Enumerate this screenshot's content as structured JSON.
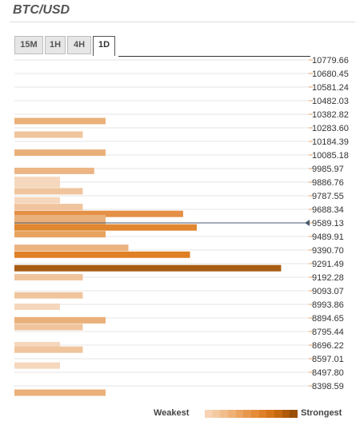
{
  "title": "BTC/USD",
  "tabs": [
    "15M",
    "1H",
    "4H",
    "1D"
  ],
  "active_tab": "1D",
  "legend": {
    "weakest": "Weakest",
    "strongest": "Strongest",
    "colors": [
      "#f7d3b3",
      "#f4c9a1",
      "#f1bd8b",
      "#efb176",
      "#eca461",
      "#e8984d",
      "#e48c3a",
      "#df7f27",
      "#d57419",
      "#c5680f",
      "#b05a0a",
      "#9a4f06"
    ]
  },
  "colors": {
    "grid": "#e6e6e6",
    "tick": "#e8a060",
    "price_line": "#4a5a70"
  },
  "current_price": 9589.13,
  "chart_data": {
    "type": "bar",
    "orientation": "horizontal",
    "title": "BTC/USD",
    "price_levels": [
      10779.66,
      10680.45,
      10581.24,
      10482.03,
      10382.82,
      10283.6,
      10184.39,
      10085.18,
      9985.97,
      9886.76,
      9787.55,
      9688.34,
      9589.13,
      9489.91,
      9390.7,
      9291.49,
      9192.28,
      9093.07,
      8993.86,
      8894.65,
      8795.44,
      8696.22,
      8597.01,
      8497.8,
      8398.59
    ],
    "ylim": [
      8398.59,
      10779.66
    ],
    "max_strength": 12,
    "bars": [
      {
        "price": 10333,
        "strength": 4,
        "color": "#eab07a"
      },
      {
        "price": 10234,
        "strength": 3,
        "color": "#f0c59d"
      },
      {
        "price": 10102,
        "strength": 4,
        "color": "#eab07a"
      },
      {
        "price": 9969,
        "strength": 3.5,
        "color": "#ebb584"
      },
      {
        "price": 9903,
        "strength": 2,
        "color": "#f5d7bd"
      },
      {
        "price": 9870,
        "strength": 2,
        "color": "#f5d7bd"
      },
      {
        "price": 9820,
        "strength": 3,
        "color": "#f0c59d"
      },
      {
        "price": 9754,
        "strength": 2,
        "color": "#f5d7bd"
      },
      {
        "price": 9705,
        "strength": 3,
        "color": "#f0c59d"
      },
      {
        "price": 9655,
        "strength": 7.4,
        "color": "#e49046"
      },
      {
        "price": 9625,
        "strength": 4,
        "color": "#eab07a"
      },
      {
        "price": 9589,
        "strength": 4,
        "color": "#eab07a"
      },
      {
        "price": 9556,
        "strength": 8,
        "color": "#e1872f"
      },
      {
        "price": 9506,
        "strength": 4,
        "color": "#e8a35f"
      },
      {
        "price": 9407,
        "strength": 5,
        "color": "#ebb27e"
      },
      {
        "price": 9357,
        "strength": 7.7,
        "color": "#df8026"
      },
      {
        "price": 9258,
        "strength": 11.7,
        "color": "#a85c12"
      },
      {
        "price": 9192,
        "strength": 3,
        "color": "#f0c59d"
      },
      {
        "price": 9060,
        "strength": 3,
        "color": "#f0c59d"
      },
      {
        "price": 8977,
        "strength": 2,
        "color": "#f5d7bd"
      },
      {
        "price": 8878,
        "strength": 4,
        "color": "#eab07a"
      },
      {
        "price": 8828,
        "strength": 3,
        "color": "#f0c59d"
      },
      {
        "price": 8696,
        "strength": 2,
        "color": "#f5d7bd"
      },
      {
        "price": 8663,
        "strength": 3,
        "color": "#f0c59d"
      },
      {
        "price": 8547,
        "strength": 2,
        "color": "#f5d7bd"
      },
      {
        "price": 8349,
        "strength": 4,
        "color": "#eab07a"
      }
    ]
  }
}
